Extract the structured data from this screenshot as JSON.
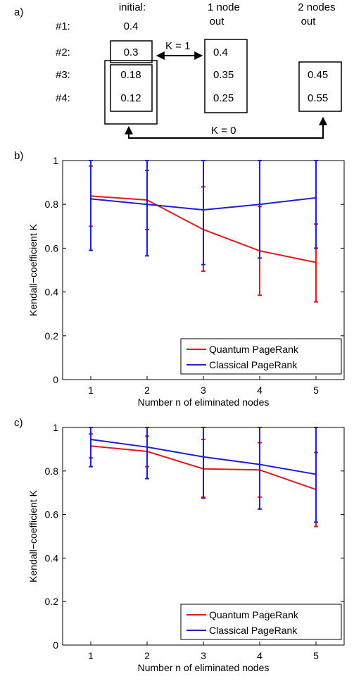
{
  "panel_a": {
    "label": "a)",
    "col_headers": [
      "initial:",
      "1 node\nout",
      "2 nodes\nout"
    ],
    "row_labels": [
      "#1:",
      "#2:",
      "#3:",
      "#4:"
    ],
    "initial": [
      "0.4",
      "0.3",
      "0.18",
      "0.12"
    ],
    "one_out": [
      "0.4",
      "0.35",
      "0.25"
    ],
    "two_out": [
      "0.45",
      "0.55"
    ],
    "k1_label": "K = 1",
    "k0_label": "K = 0"
  },
  "chart_data": [
    {
      "panel": "b)",
      "type": "line",
      "xlabel": "Number n of eliminated nodes",
      "ylabel": "Kendall−coefficient K",
      "x": [
        1,
        2,
        3,
        4,
        5
      ],
      "xlim": [
        0.5,
        5.5
      ],
      "ylim": [
        0,
        1
      ],
      "xticks": [
        "1",
        "2",
        "3",
        "4",
        "5"
      ],
      "yticks": [
        "0",
        "0.2",
        "0.4",
        "0.6",
        "0.8",
        "1"
      ],
      "legend_position": "bottom-right",
      "series": [
        {
          "name": "Quantum PageRank",
          "color": "#e31a1c",
          "values": [
            0.838,
            0.82,
            0.685,
            0.588,
            0.535
          ],
          "err_low": [
            0.7,
            0.685,
            0.495,
            0.385,
            0.355
          ],
          "err_high": [
            0.975,
            0.955,
            0.88,
            0.79,
            0.71
          ]
        },
        {
          "name": "Classical PageRank",
          "color": "#1f1fd6",
          "values": [
            0.825,
            0.8,
            0.775,
            0.8,
            0.83
          ],
          "err_low": [
            0.59,
            0.565,
            0.525,
            0.555,
            0.6
          ],
          "err_high": [
            1.0,
            1.0,
            1.0,
            1.0,
            1.0
          ]
        }
      ]
    },
    {
      "panel": "c)",
      "type": "line",
      "xlabel": "Number n of eliminated nodes",
      "ylabel": "Kendall−coefficient K",
      "x": [
        1,
        2,
        3,
        4,
        5
      ],
      "xlim": [
        0.5,
        5.5
      ],
      "ylim": [
        0,
        1
      ],
      "xticks": [
        "1",
        "2",
        "3",
        "4",
        "5"
      ],
      "yticks": [
        "0",
        "0.2",
        "0.4",
        "0.6",
        "0.8",
        "1"
      ],
      "legend_position": "bottom-right",
      "series": [
        {
          "name": "Quantum PageRank",
          "color": "#e31a1c",
          "values": [
            0.915,
            0.89,
            0.81,
            0.805,
            0.715
          ],
          "err_low": [
            0.86,
            0.82,
            0.68,
            0.68,
            0.545
          ],
          "err_high": [
            0.97,
            0.96,
            0.945,
            0.93,
            0.885
          ]
        },
        {
          "name": "Classical PageRank",
          "color": "#1f1fd6",
          "values": [
            0.945,
            0.91,
            0.865,
            0.83,
            0.785
          ],
          "err_low": [
            0.82,
            0.765,
            0.675,
            0.625,
            0.565
          ],
          "err_high": [
            1.0,
            1.0,
            1.0,
            1.0,
            1.0
          ]
        }
      ]
    }
  ]
}
